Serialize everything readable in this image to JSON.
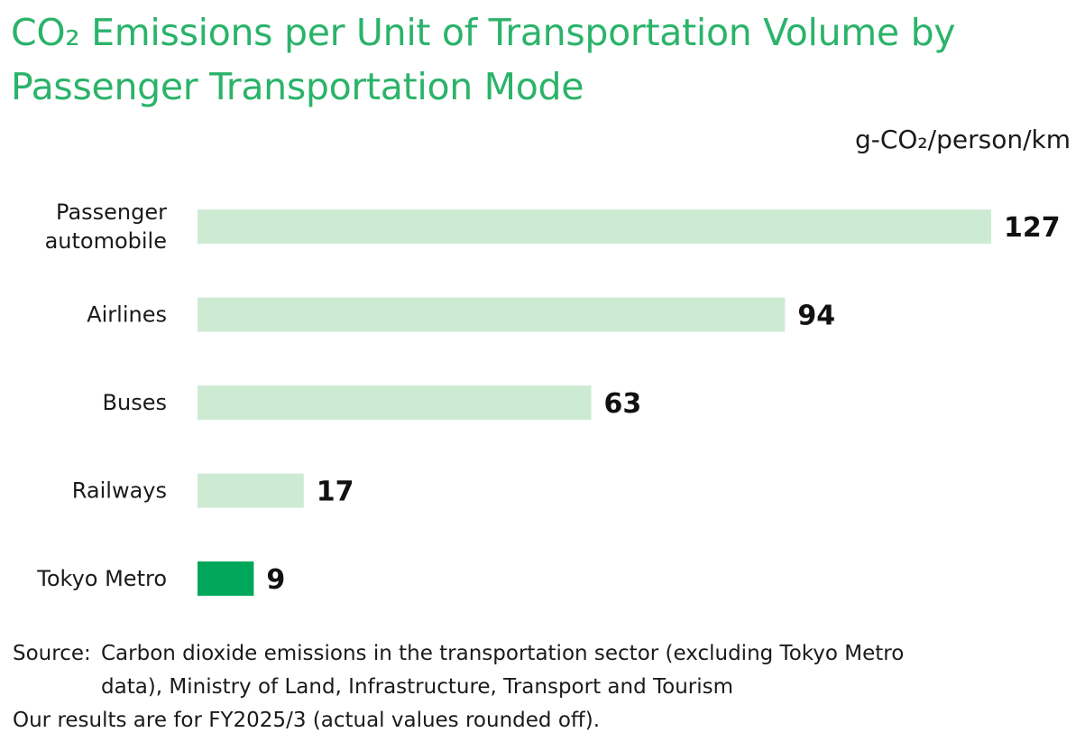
{
  "title": "CO₂ Emissions per Unit of Transportation Volume by Passenger Transportation Mode",
  "chart_data": {
    "type": "bar",
    "orientation": "horizontal",
    "title": "CO₂ Emissions per Unit of Transportation Volume by Passenger Transportation Mode",
    "unit": "g-CO₂/person/km",
    "categories": [
      "Passenger automobile",
      "Airlines",
      "Buses",
      "Railways",
      "Tokyo Metro"
    ],
    "category_lines": [
      [
        "Passenger",
        "automobile"
      ],
      [
        "Airlines"
      ],
      [
        "Buses"
      ],
      [
        "Railways"
      ],
      [
        "Tokyo Metro"
      ]
    ],
    "values": [
      127,
      94,
      63,
      17,
      9
    ],
    "bar_colors": [
      "#cdebd3",
      "#cdebd3",
      "#cdebd3",
      "#cdebd3",
      "#00a65a"
    ],
    "xlim": [
      0,
      127
    ],
    "grid": false,
    "legend": false
  },
  "source": {
    "prefix": "Source:",
    "line1": "Carbon dioxide emissions in the transportation sector (excluding Tokyo Metro",
    "line2": "data), Ministry of Land, Infrastructure, Transport and Tourism",
    "note": "Our results are for FY2025/3 (actual values rounded off)."
  }
}
